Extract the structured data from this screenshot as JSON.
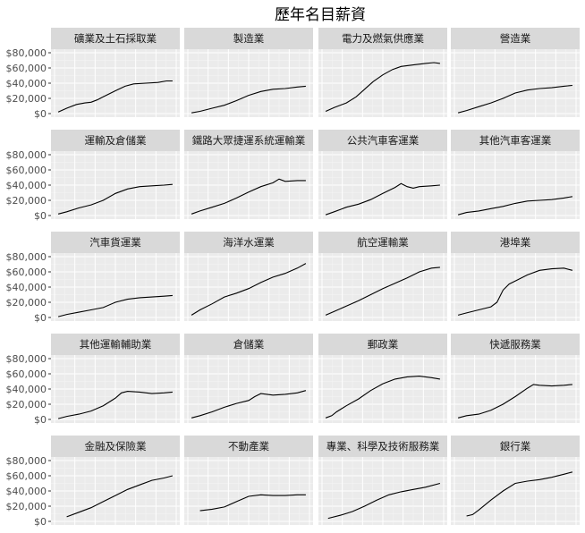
{
  "chart_data": {
    "type": "line",
    "title": "歷年名目薪資",
    "xlabel": "",
    "ylabel": "",
    "ylim": [
      0,
      80000
    ],
    "y_ticks": [
      0,
      20000,
      40000,
      60000,
      80000
    ],
    "y_tick_labels": [
      "$0",
      "$20,000",
      "$40,000",
      "$60,000",
      "$80,000"
    ],
    "x_range": [
      0,
      1
    ],
    "grid": true,
    "layout": "facet grid, 5 rows x 4 columns, shared y axis",
    "facets": [
      {
        "name": "礦業及土石採取業",
        "x": [
          0.03,
          0.1,
          0.18,
          0.25,
          0.3,
          0.35,
          0.4,
          0.5,
          0.58,
          0.65,
          0.75,
          0.85,
          0.92,
          0.97
        ],
        "y": [
          2000,
          7000,
          12000,
          14000,
          15000,
          18000,
          22000,
          30000,
          36000,
          39000,
          40000,
          41000,
          43000,
          43000
        ]
      },
      {
        "name": "製造業",
        "x": [
          0.03,
          0.1,
          0.2,
          0.3,
          0.4,
          0.5,
          0.6,
          0.7,
          0.8,
          0.9,
          0.97
        ],
        "y": [
          1000,
          3000,
          7000,
          11000,
          17000,
          24000,
          29000,
          32000,
          33000,
          35000,
          36000
        ]
      },
      {
        "name": "電力及燃氣供應業",
        "x": [
          0.03,
          0.1,
          0.2,
          0.28,
          0.35,
          0.42,
          0.5,
          0.58,
          0.65,
          0.75,
          0.85,
          0.92,
          0.97
        ],
        "y": [
          3000,
          8000,
          14000,
          22000,
          32000,
          42000,
          51000,
          58000,
          62000,
          64000,
          66000,
          67000,
          66000
        ]
      },
      {
        "name": "營造業",
        "x": [
          0.03,
          0.1,
          0.2,
          0.3,
          0.4,
          0.5,
          0.6,
          0.7,
          0.8,
          0.9,
          0.97
        ],
        "y": [
          1000,
          4000,
          9000,
          14000,
          20000,
          27000,
          31000,
          33000,
          34000,
          36000,
          37000
        ]
      },
      {
        "name": "運輸及倉儲業",
        "x": [
          0.03,
          0.1,
          0.2,
          0.3,
          0.4,
          0.5,
          0.6,
          0.7,
          0.8,
          0.9,
          0.97
        ],
        "y": [
          2000,
          5000,
          10000,
          14000,
          20000,
          29000,
          35000,
          38000,
          39000,
          40000,
          41000
        ]
      },
      {
        "name": "鐵路大眾捷運系統運輸業",
        "x": [
          0.03,
          0.1,
          0.2,
          0.3,
          0.4,
          0.5,
          0.6,
          0.7,
          0.75,
          0.8,
          0.9,
          0.97
        ],
        "y": [
          2000,
          6000,
          11000,
          16000,
          23000,
          31000,
          38000,
          43000,
          48000,
          45000,
          46000,
          46000
        ]
      },
      {
        "name": "公共汽車客運業",
        "x": [
          0.03,
          0.1,
          0.2,
          0.3,
          0.4,
          0.5,
          0.6,
          0.65,
          0.7,
          0.75,
          0.8,
          0.9,
          0.97
        ],
        "y": [
          1000,
          5000,
          11000,
          15000,
          21000,
          29000,
          37000,
          42000,
          38000,
          36000,
          38000,
          39000,
          40000
        ]
      },
      {
        "name": "其他汽車客運業",
        "x": [
          0.03,
          0.1,
          0.2,
          0.3,
          0.4,
          0.5,
          0.6,
          0.7,
          0.8,
          0.9,
          0.97
        ],
        "y": [
          1000,
          4000,
          6000,
          9000,
          12000,
          16000,
          19000,
          20000,
          21000,
          23000,
          25000
        ]
      },
      {
        "name": "汽車貨運業",
        "x": [
          0.03,
          0.1,
          0.2,
          0.3,
          0.4,
          0.5,
          0.6,
          0.7,
          0.8,
          0.9,
          0.97
        ],
        "y": [
          1000,
          4000,
          7000,
          10000,
          13000,
          20000,
          24000,
          26000,
          27000,
          28000,
          29000
        ]
      },
      {
        "name": "海洋水運業",
        "x": [
          0.03,
          0.1,
          0.2,
          0.3,
          0.4,
          0.5,
          0.6,
          0.7,
          0.8,
          0.9,
          0.97
        ],
        "y": [
          3000,
          10000,
          18000,
          27000,
          32000,
          38000,
          46000,
          53000,
          58000,
          65000,
          71000
        ]
      },
      {
        "name": "航空運輸業",
        "x": [
          0.03,
          0.1,
          0.2,
          0.3,
          0.4,
          0.5,
          0.6,
          0.7,
          0.8,
          0.9,
          0.97
        ],
        "y": [
          3000,
          8000,
          15000,
          22000,
          30000,
          38000,
          45000,
          52000,
          60000,
          65000,
          66000
        ]
      },
      {
        "name": "港埠業",
        "x": [
          0.03,
          0.1,
          0.2,
          0.3,
          0.35,
          0.4,
          0.45,
          0.5,
          0.6,
          0.7,
          0.8,
          0.9,
          0.97
        ],
        "y": [
          3000,
          6000,
          10000,
          14000,
          20000,
          36000,
          44000,
          48000,
          56000,
          62000,
          64000,
          65000,
          62000
        ]
      },
      {
        "name": "其他運輸輔助業",
        "x": [
          0.03,
          0.1,
          0.2,
          0.3,
          0.4,
          0.5,
          0.55,
          0.6,
          0.7,
          0.8,
          0.9,
          0.97
        ],
        "y": [
          1000,
          4000,
          7000,
          11000,
          18000,
          28000,
          35000,
          37000,
          36000,
          34000,
          35000,
          36000
        ]
      },
      {
        "name": "倉儲業",
        "x": [
          0.03,
          0.1,
          0.2,
          0.3,
          0.4,
          0.5,
          0.55,
          0.6,
          0.7,
          0.8,
          0.9,
          0.97
        ],
        "y": [
          2000,
          5000,
          10000,
          16000,
          21000,
          25000,
          30000,
          34000,
          32000,
          33000,
          35000,
          38000
        ]
      },
      {
        "name": "郵政業",
        "x": [
          0.03,
          0.08,
          0.12,
          0.2,
          0.3,
          0.4,
          0.5,
          0.6,
          0.7,
          0.8,
          0.9,
          0.97
        ],
        "y": [
          2000,
          5000,
          10000,
          18000,
          27000,
          38000,
          47000,
          53000,
          56000,
          57000,
          55000,
          53000
        ]
      },
      {
        "name": "快遞服務業",
        "x": [
          0.03,
          0.1,
          0.2,
          0.3,
          0.4,
          0.5,
          0.6,
          0.65,
          0.7,
          0.8,
          0.9,
          0.97
        ],
        "y": [
          2000,
          5000,
          7000,
          12000,
          20000,
          30000,
          41000,
          46000,
          45000,
          44000,
          45000,
          46000
        ]
      },
      {
        "name": "金融及保險業",
        "x": [
          0.1,
          0.2,
          0.3,
          0.4,
          0.5,
          0.6,
          0.7,
          0.8,
          0.9,
          0.97
        ],
        "y": [
          6000,
          12000,
          18000,
          26000,
          34000,
          42000,
          48000,
          54000,
          57000,
          60000
        ]
      },
      {
        "name": "不動產業",
        "x": [
          0.1,
          0.2,
          0.3,
          0.4,
          0.5,
          0.6,
          0.7,
          0.8,
          0.9,
          0.97
        ],
        "y": [
          14000,
          16000,
          19000,
          26000,
          33000,
          35000,
          34000,
          34000,
          35000,
          35000
        ]
      },
      {
        "name": "專業、科學及技術服務業",
        "x": [
          0.05,
          0.15,
          0.25,
          0.35,
          0.45,
          0.55,
          0.65,
          0.75,
          0.85,
          0.97
        ],
        "y": [
          4000,
          8000,
          13000,
          20000,
          28000,
          35000,
          39000,
          42000,
          45000,
          50000
        ]
      },
      {
        "name": "銀行業",
        "x": [
          0.1,
          0.15,
          0.2,
          0.3,
          0.4,
          0.5,
          0.6,
          0.7,
          0.8,
          0.9,
          0.97
        ],
        "y": [
          7000,
          9000,
          15000,
          28000,
          40000,
          50000,
          53000,
          55000,
          58000,
          62000,
          65000
        ]
      }
    ]
  }
}
